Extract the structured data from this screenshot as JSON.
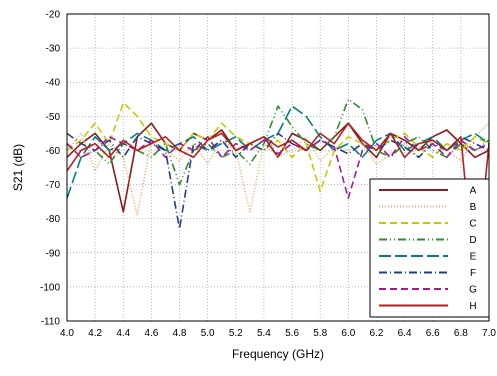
{
  "chart_data": {
    "type": "line",
    "xlabel": "Frequency (GHz)",
    "ylabel": "S21 (dB)",
    "xlim": [
      4.0,
      7.0
    ],
    "ylim": [
      -110,
      -20
    ],
    "x_ticks": [
      "4.0",
      "4.2",
      "4.4",
      "4.6",
      "4.8",
      "5.0",
      "5.2",
      "5.4",
      "5.6",
      "5.8",
      "6.0",
      "6.2",
      "6.4",
      "6.6",
      "6.8",
      "7.0"
    ],
    "y_ticks": [
      "-20",
      "-30",
      "-40",
      "-50",
      "-60",
      "-70",
      "-80",
      "-90",
      "-100",
      "-110"
    ],
    "grid": true,
    "legend_position": "lower-right",
    "x": [
      4.0,
      4.1,
      4.2,
      4.3,
      4.4,
      4.5,
      4.6,
      4.7,
      4.8,
      4.9,
      5.0,
      5.1,
      5.2,
      5.3,
      5.4,
      5.5,
      5.6,
      5.7,
      5.8,
      5.9,
      6.0,
      6.1,
      6.2,
      6.3,
      6.4,
      6.5,
      6.6,
      6.7,
      6.8,
      6.9,
      7.0
    ],
    "series": [
      {
        "name": "A",
        "color": "#8b1a1a",
        "dash": "solid",
        "values": [
          -62,
          -58,
          -55,
          -60,
          -78,
          -56,
          -52,
          -58,
          -60,
          -55,
          -57,
          -54,
          -60,
          -58,
          -56,
          -62,
          -55,
          -57,
          -60,
          -56,
          -52,
          -58,
          -62,
          -55,
          -57,
          -60,
          -56,
          -54,
          -58,
          -62,
          -60
        ]
      },
      {
        "name": "B",
        "color": "#f4a460",
        "dash": "dotted",
        "values": [
          -60,
          -55,
          -66,
          -58,
          -62,
          -79,
          -57,
          -60,
          -63,
          -58,
          -64,
          -57,
          -60,
          -78,
          -58,
          -62,
          -60,
          -56,
          -63,
          -59,
          -60,
          -58,
          -64,
          -61,
          -58,
          -62,
          -57,
          -60,
          -63,
          -56,
          -52
        ]
      },
      {
        "name": "C",
        "color": "#c8c800",
        "dash": "dashed",
        "values": [
          -60,
          -57,
          -52,
          -58,
          -46,
          -50,
          -56,
          -58,
          -60,
          -55,
          -57,
          -52,
          -56,
          -58,
          -60,
          -57,
          -62,
          -58,
          -72,
          -60,
          -56,
          -58,
          -60,
          -57,
          -55,
          -59,
          -62,
          -58,
          -60,
          -56,
          -58
        ]
      },
      {
        "name": "D",
        "color": "#2e8b2e",
        "dash": "dash-dot-dot",
        "values": [
          -58,
          -62,
          -60,
          -64,
          -58,
          -60,
          -62,
          -58,
          -70,
          -60,
          -58,
          -62,
          -60,
          -64,
          -58,
          -47,
          -53,
          -58,
          -60,
          -56,
          -45,
          -48,
          -60,
          -62,
          -58,
          -56,
          -60,
          -62,
          -58,
          -60,
          -57
        ]
      },
      {
        "name": "E",
        "color": "#008080",
        "dash": "long-dash",
        "values": [
          -74,
          -62,
          -56,
          -60,
          -58,
          -55,
          -57,
          -60,
          -58,
          -56,
          -60,
          -58,
          -56,
          -60,
          -57,
          -55,
          -47,
          -50,
          -56,
          -60,
          -58,
          -62,
          -57,
          -55,
          -60,
          -58,
          -56,
          -60,
          -57,
          -55,
          -58
        ]
      },
      {
        "name": "F",
        "color": "#1f3f7f",
        "dash": "dash-dot",
        "values": [
          -55,
          -58,
          -60,
          -57,
          -62,
          -56,
          -58,
          -60,
          -83,
          -58,
          -60,
          -57,
          -62,
          -58,
          -60,
          -55,
          -58,
          -60,
          -57,
          -59,
          -61,
          -58,
          -60,
          -57,
          -59,
          -62,
          -58,
          -60,
          -56,
          -58,
          -60
        ]
      },
      {
        "name": "G",
        "color": "#9b1b9b",
        "dash": "dashed",
        "values": [
          -58,
          -62,
          -60,
          -56,
          -58,
          -60,
          -57,
          -62,
          -58,
          -60,
          -56,
          -62,
          -58,
          -60,
          -57,
          -61,
          -58,
          -60,
          -57,
          -59,
          -74,
          -60,
          -58,
          -62,
          -56,
          -60,
          -58,
          -62,
          -57,
          -60,
          -58
        ]
      },
      {
        "name": "H",
        "color": "#b22222",
        "dash": "solid",
        "values": [
          -66,
          -60,
          -58,
          -62,
          -57,
          -60,
          -58,
          -56,
          -60,
          -62,
          -57,
          -55,
          -60,
          -58,
          -56,
          -59,
          -57,
          -60,
          -55,
          -58,
          -52,
          -57,
          -60,
          -55,
          -62,
          -58,
          -57,
          -60,
          -56,
          -100,
          -58
        ]
      }
    ]
  }
}
